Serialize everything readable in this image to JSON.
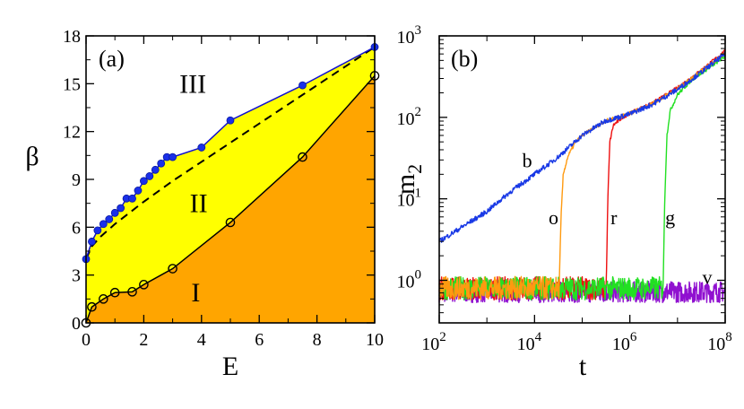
{
  "chart_data": [
    {
      "id": "a",
      "type": "line",
      "panel_label": "(a)",
      "xlabel": "E",
      "ylabel": "β",
      "xlim": [
        0,
        10
      ],
      "ylim": [
        0,
        18
      ],
      "xticks": [
        0,
        2,
        4,
        6,
        8,
        10
      ],
      "yticks": [
        0,
        3,
        6,
        9,
        12,
        15,
        18
      ],
      "region_labels": [
        {
          "text": "III",
          "x": 3.7,
          "y": 15.0
        },
        {
          "text": "II",
          "x": 3.9,
          "y": 7.5
        },
        {
          "text": "I",
          "x": 3.8,
          "y": 1.9
        }
      ],
      "colors": {
        "region_I": "#ffa500",
        "region_II": "#ffff00",
        "upper_line": "#1010d0",
        "upper_marker": "#1a30e8"
      },
      "series": [
        {
          "name": "upper",
          "style": "solid-filled-markers",
          "x": [
            0,
            0.2,
            0.4,
            0.6,
            0.8,
            1.0,
            1.2,
            1.4,
            1.6,
            1.8,
            2.0,
            2.2,
            2.4,
            2.6,
            2.8,
            3.0,
            4.0,
            5.0,
            7.5,
            10.0
          ],
          "y": [
            4.0,
            5.1,
            5.8,
            6.2,
            6.5,
            6.9,
            7.2,
            7.8,
            7.8,
            8.3,
            8.9,
            9.2,
            9.6,
            10.0,
            10.4,
            10.4,
            11.0,
            12.7,
            14.9,
            17.3
          ]
        },
        {
          "name": "dashed",
          "style": "dashed",
          "x": [
            0,
            0.2,
            0.5,
            1.0,
            2.0,
            3.0,
            4.0,
            5.0,
            6.0,
            7.0,
            8.0,
            9.0,
            10.0
          ],
          "y": [
            4.0,
            4.8,
            5.4,
            6.2,
            7.6,
            8.9,
            10.1,
            11.3,
            12.5,
            13.7,
            14.9,
            16.1,
            17.3
          ]
        },
        {
          "name": "lower",
          "style": "solid-open-markers",
          "x": [
            0,
            0.2,
            0.6,
            1.0,
            1.6,
            2.0,
            3.0,
            5.0,
            7.5,
            10.0
          ],
          "y": [
            0.0,
            1.0,
            1.5,
            1.9,
            1.95,
            2.4,
            3.4,
            6.3,
            10.4,
            15.5
          ]
        }
      ]
    },
    {
      "id": "b",
      "type": "line",
      "panel_label": "(b)",
      "xlabel": "t",
      "ylabel": "m",
      "ylabel_sub": "2",
      "xscale": "log",
      "yscale": "log",
      "xlim": [
        100,
        100000000
      ],
      "ylim": [
        0.3,
        1000
      ],
      "xtick_base": "10",
      "xtick_exps": [
        "2",
        "4",
        "6",
        "8"
      ],
      "ytick_base": "10",
      "ytick_exps": [
        "0",
        "1",
        "2",
        "3"
      ],
      "curve_labels": [
        {
          "text": "b",
          "t": 7000,
          "m": 30
        },
        {
          "text": "o",
          "t": 25000,
          "m": 6
        },
        {
          "text": "r",
          "t": 460000,
          "m": 6
        },
        {
          "text": "g",
          "t": 7000000,
          "m": 6
        },
        {
          "text": "v",
          "t": 42000000,
          "m": 1.1
        }
      ],
      "series": [
        {
          "name": "b",
          "color": "#1a3ae6",
          "t": [
            100,
            300,
            1000,
            3000,
            10000,
            30000,
            100000,
            300000,
            1000000,
            3000000,
            10000000,
            30000000,
            100000000
          ],
          "m": [
            3.0,
            4.5,
            7.0,
            12.0,
            20.0,
            32.0,
            60.0,
            90.0,
            110.0,
            145.0,
            220.0,
            350.0,
            600.0
          ],
          "noise": 0.07
        },
        {
          "name": "o",
          "color": "#ff9a10",
          "baseline": 0.8,
          "noise_floor": 0.11,
          "jump_t": 33000,
          "t": [
            33000,
            36000,
            40000,
            50000,
            70000,
            100000,
            300000,
            1000000,
            3000000,
            10000000,
            30000000,
            100000000
          ],
          "m": [
            0.9,
            6.0,
            20.0,
            33.0,
            48.0,
            60.0,
            90.0,
            112.0,
            148.0,
            225.0,
            360.0,
            620.0
          ],
          "noise": 0.05
        },
        {
          "name": "r",
          "color": "#ee1010",
          "baseline": 0.8,
          "noise_floor": 0.11,
          "jump_t": 320000,
          "t": [
            320000,
            345000,
            380000,
            450000,
            700000,
            1000000,
            3000000,
            10000000,
            30000000,
            100000000
          ],
          "m": [
            0.9,
            10.0,
            50.0,
            80.0,
            100.0,
            112.0,
            150.0,
            230.0,
            370.0,
            650.0
          ],
          "noise": 0.05
        },
        {
          "name": "g",
          "color": "#22e022",
          "baseline": 0.8,
          "noise_floor": 0.11,
          "jump_t": 5000000,
          "t": [
            5000000,
            5400000,
            6000000,
            7000000,
            10000000,
            20000000,
            50000000,
            100000000
          ],
          "m": [
            0.9,
            10.0,
            60.0,
            120.0,
            190.0,
            290.0,
            420.0,
            560.0
          ],
          "noise": 0.05
        },
        {
          "name": "v",
          "color": "#9010d0",
          "baseline": 0.72,
          "noise_floor": 0.12,
          "t": [
            100,
            100000000
          ],
          "m": [
            0.72,
            0.72
          ],
          "noise": 0.12
        }
      ]
    }
  ]
}
